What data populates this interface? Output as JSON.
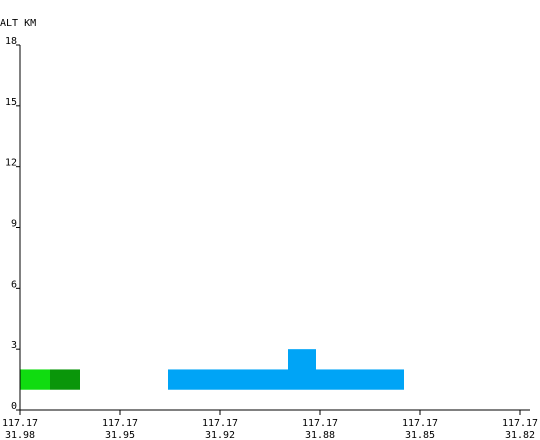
{
  "chart_data": {
    "type": "heatmap",
    "ylabel": "ALT KM",
    "yticks": [
      0,
      3,
      6,
      9,
      12,
      15,
      18
    ],
    "ylim": [
      0,
      18
    ],
    "xticks": [
      {
        "lon": "117.17",
        "lat": "31.98"
      },
      {
        "lon": "117.17",
        "lat": "31.95"
      },
      {
        "lon": "117.17",
        "lat": "31.92"
      },
      {
        "lon": "117.17",
        "lat": "31.88"
      },
      {
        "lon": "117.17",
        "lat": "31.85"
      },
      {
        "lon": "117.17",
        "lat": "31.82"
      }
    ],
    "xlim": [
      0,
      5
    ],
    "cells": [
      {
        "x0": 0.0,
        "x1": 0.3,
        "y0": 1.0,
        "y1": 2.0,
        "color": "#10dc10"
      },
      {
        "x0": 0.3,
        "x1": 0.6,
        "y0": 1.0,
        "y1": 2.0,
        "color": "#0a960a"
      },
      {
        "x0": 1.48,
        "x1": 2.68,
        "y0": 1.0,
        "y1": 2.0,
        "color": "#00a4f6"
      },
      {
        "x0": 2.68,
        "x1": 2.96,
        "y0": 1.0,
        "y1": 3.0,
        "color": "#00a4f6"
      },
      {
        "x0": 2.96,
        "x1": 3.84,
        "y0": 1.0,
        "y1": 2.0,
        "color": "#00a4f6"
      }
    ],
    "grid": false
  }
}
